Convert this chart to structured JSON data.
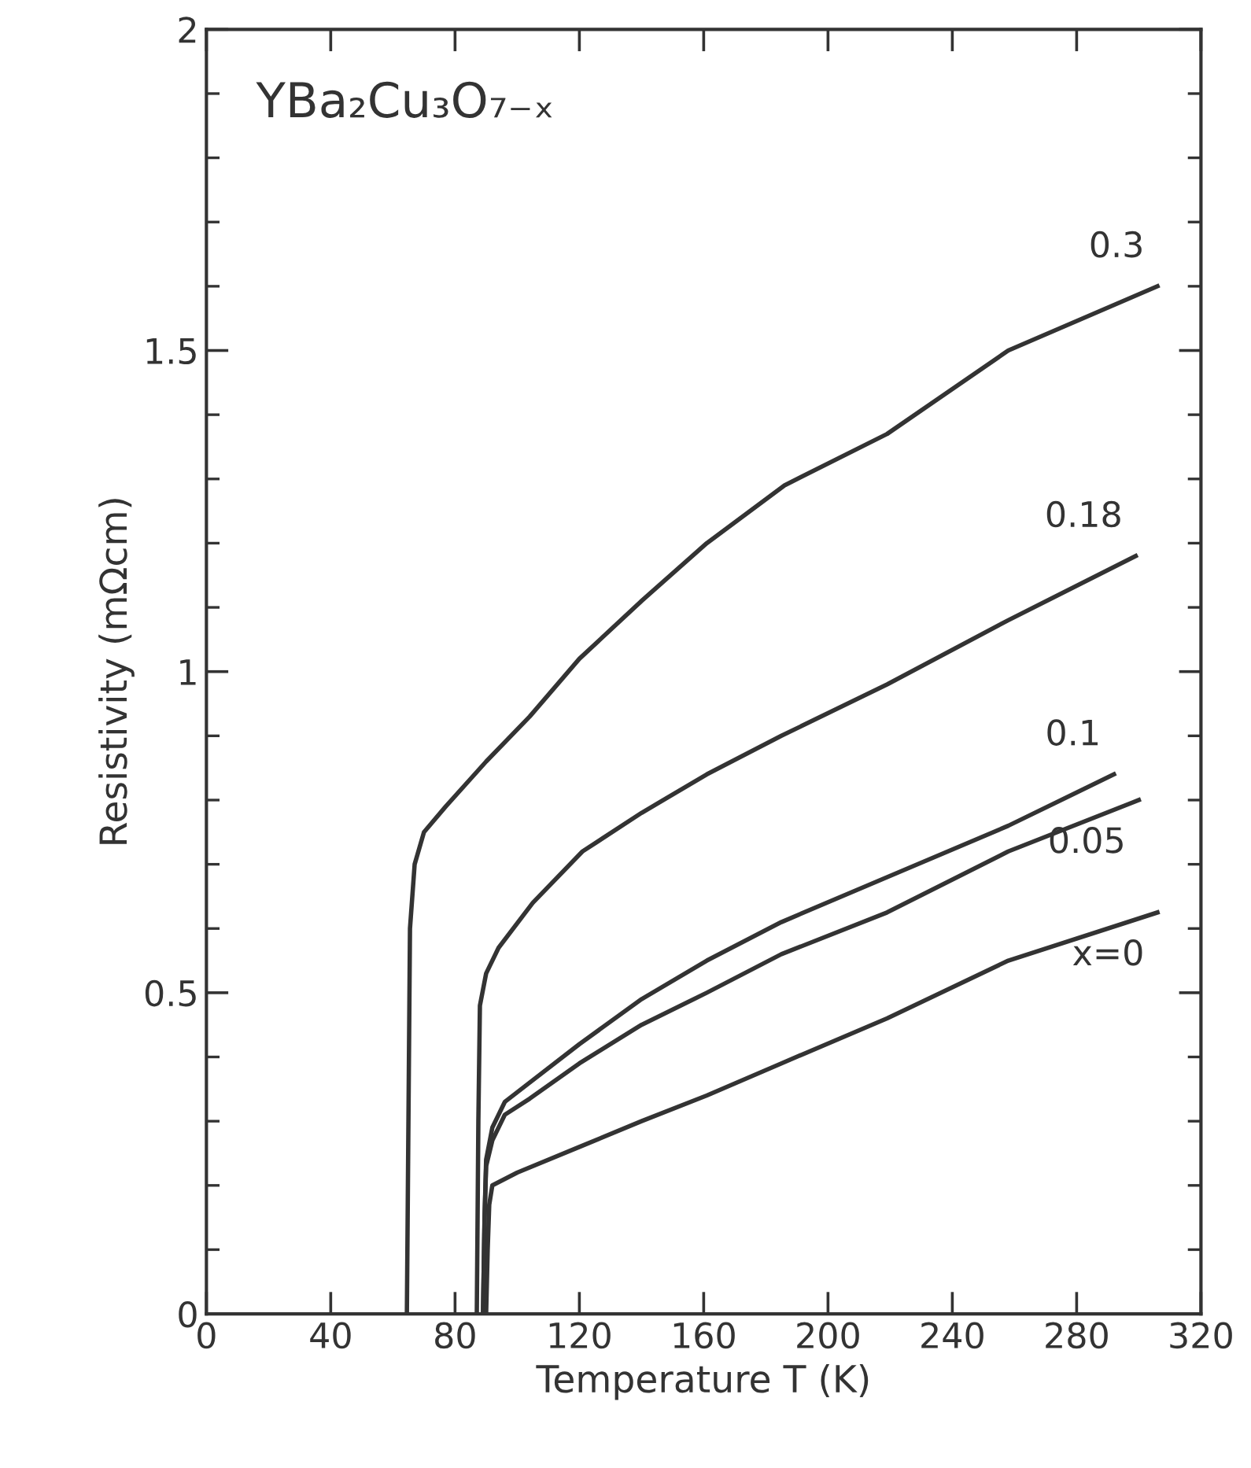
{
  "chart_data": {
    "type": "line",
    "title": "YBa₂Cu₃O₇₋ₓ",
    "xlabel": "Temperature T (K)",
    "ylabel": "Resistivity (mΩcm)",
    "xlim": [
      0,
      320
    ],
    "xticks": [
      0,
      40,
      80,
      120,
      160,
      200,
      240,
      280,
      320
    ],
    "ylim": [
      0,
      2
    ],
    "yticks": [
      0,
      0.5,
      1,
      1.5,
      2
    ],
    "grid": false,
    "legend": "right",
    "marker": "none",
    "line_style": "solid",
    "series": [
      {
        "name": "0.3",
        "color": "#333333",
        "x": [
          64.5,
          65,
          65.5,
          67,
          70,
          77,
          90,
          104,
          120,
          140,
          161,
          186,
          219,
          258,
          306
        ],
        "values": [
          0,
          0.3,
          0.6,
          0.7,
          0.75,
          0.79,
          0.86,
          0.93,
          1.02,
          1.11,
          1.2,
          1.29,
          1.37,
          1.5,
          1.6
        ]
      },
      {
        "name": "0.18",
        "color": "#333333",
        "x": [
          87,
          87.5,
          88,
          90,
          94,
          105,
          121,
          140,
          161,
          185,
          219,
          258,
          299
        ],
        "values": [
          0,
          0.3,
          0.48,
          0.53,
          0.57,
          0.64,
          0.72,
          0.78,
          0.84,
          0.9,
          0.98,
          1.08,
          1.18
        ]
      },
      {
        "name": "0.1",
        "color": "#333333",
        "x": [
          89,
          89.5,
          90,
          92,
          96,
          104,
          120,
          140,
          161,
          185,
          219,
          258,
          292
        ],
        "values": [
          0,
          0.15,
          0.24,
          0.29,
          0.33,
          0.36,
          0.42,
          0.49,
          0.55,
          0.61,
          0.68,
          0.76,
          0.84
        ]
      },
      {
        "name": "0.05",
        "color": "#333333",
        "x": [
          89,
          89.5,
          90,
          92,
          96,
          104,
          120,
          140,
          161,
          185,
          219,
          258,
          300
        ],
        "values": [
          0,
          0.15,
          0.23,
          0.27,
          0.31,
          0.335,
          0.39,
          0.45,
          0.5,
          0.56,
          0.625,
          0.72,
          0.8
        ]
      },
      {
        "name": "x=0",
        "color": "#333333",
        "x": [
          90,
          90.5,
          91,
          92,
          100,
          120,
          140,
          161,
          185,
          219,
          258,
          306
        ],
        "values": [
          0,
          0.1,
          0.17,
          0.2,
          0.22,
          0.26,
          0.3,
          0.34,
          0.39,
          0.46,
          0.55,
          0.625
        ]
      }
    ]
  }
}
